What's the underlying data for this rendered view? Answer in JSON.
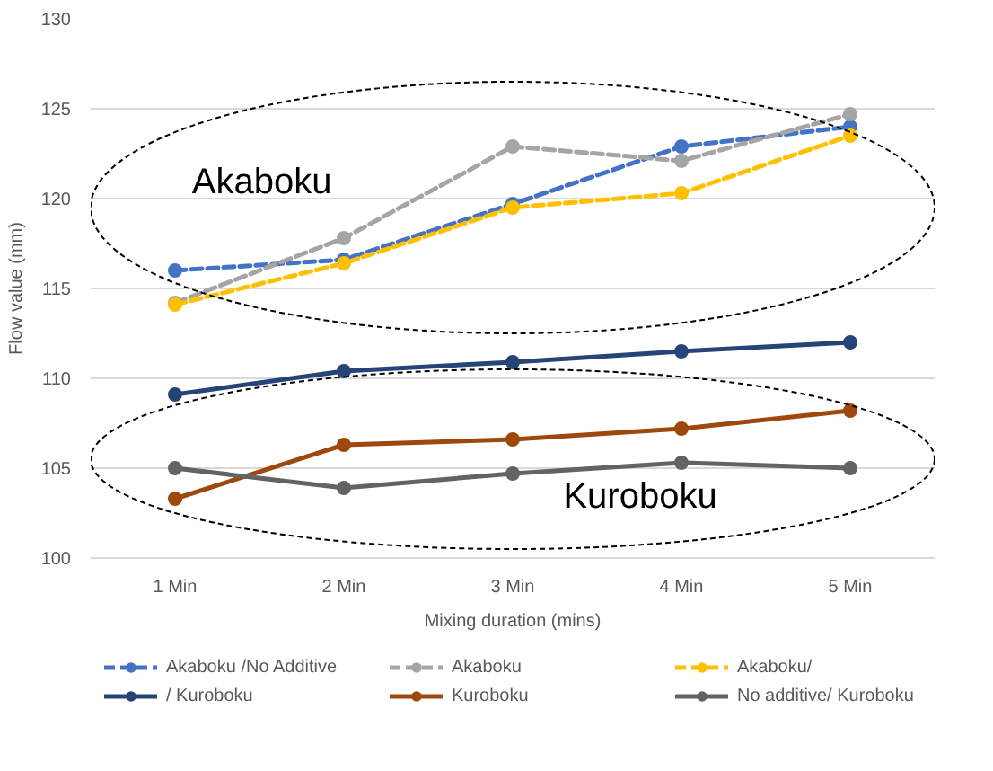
{
  "chart_data": {
    "type": "line",
    "xlabel": "Mixing duration (mins)",
    "ylabel": "Flow value (mm)",
    "categories": [
      "1 Min",
      "2 Min",
      "3 Min",
      "4 Min",
      "5 Min"
    ],
    "ylim": [
      100,
      130
    ],
    "yticks": [
      100,
      105,
      110,
      115,
      120,
      125,
      130
    ],
    "grid": "y",
    "legend": "bottom",
    "marker": "circle",
    "annotations": [
      "Akaboku",
      "Kuroboku"
    ],
    "series": [
      {
        "name": "Akaboku /No Additive",
        "color": "#4472c4",
        "line_style": "dashed",
        "values": [
          116.0,
          116.6,
          119.7,
          122.9,
          124.0
        ]
      },
      {
        "name": "Akaboku",
        "color": "#a5a5a5",
        "line_style": "dashed",
        "values": [
          114.2,
          117.8,
          122.9,
          122.1,
          124.7
        ]
      },
      {
        "name": "Akaboku/",
        "color": "#ffc000",
        "line_style": "dashed",
        "values": [
          114.1,
          116.4,
          119.5,
          120.3,
          123.5
        ]
      },
      {
        "name": "/ Kuroboku",
        "color": "#264478",
        "line_style": "solid",
        "values": [
          109.1,
          110.4,
          110.9,
          111.5,
          112.0
        ]
      },
      {
        "name": "Kuroboku",
        "color": "#9e480e",
        "line_style": "solid",
        "values": [
          103.3,
          106.3,
          106.6,
          107.2,
          108.2
        ]
      },
      {
        "name": "No additive/ Kuroboku",
        "color": "#636363",
        "line_style": "solid",
        "values": [
          105.0,
          103.9,
          104.7,
          105.3,
          105.0
        ]
      }
    ]
  }
}
